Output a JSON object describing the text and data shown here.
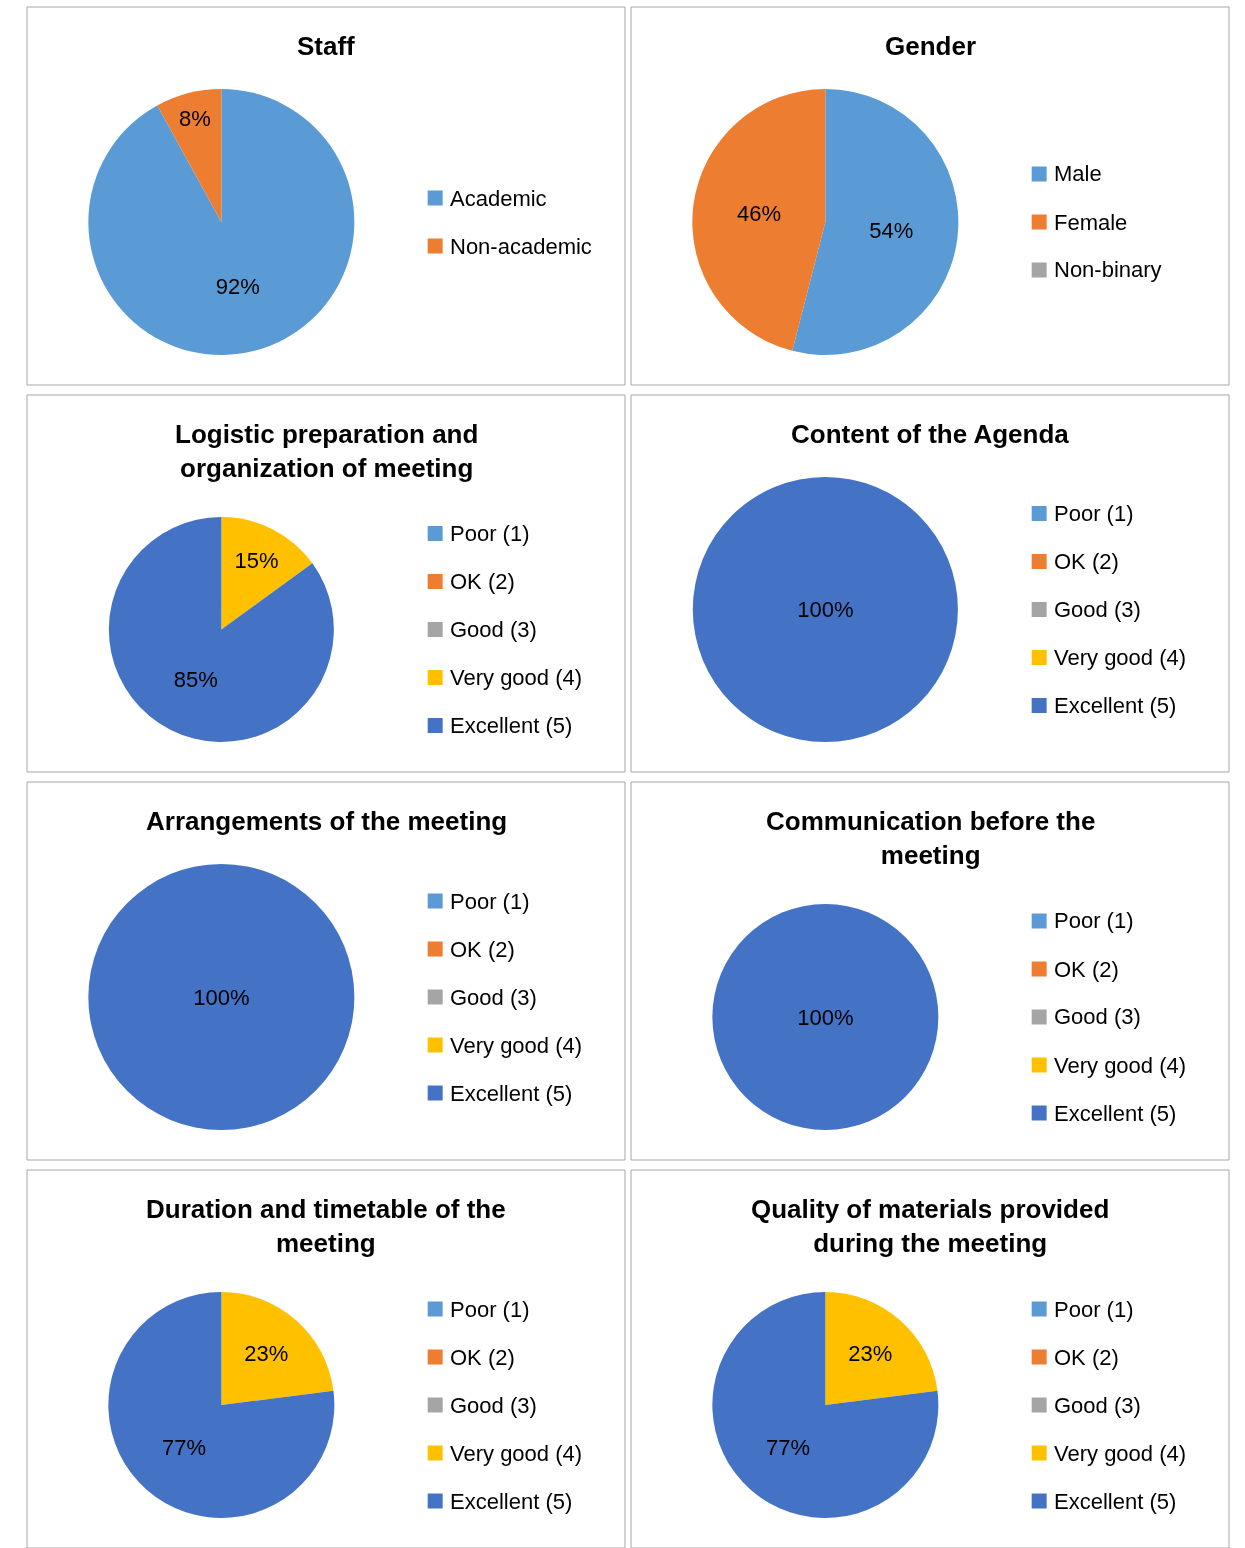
{
  "chart_data": [
    {
      "type": "pie",
      "title": "Staff",
      "categories": [
        "Academic",
        "Non-academic"
      ],
      "values": [
        92,
        8
      ],
      "colors": [
        "#5b9bd5",
        "#ed7d31"
      ],
      "value_labels": [
        "92%",
        "8%"
      ],
      "legend": "right"
    },
    {
      "type": "pie",
      "title": "Gender",
      "categories": [
        "Male",
        "Female",
        "Non-binary"
      ],
      "values": [
        54,
        46,
        0
      ],
      "colors": [
        "#5b9bd5",
        "#ed7d31",
        "#a5a5a5"
      ],
      "value_labels": [
        "54%",
        "46%",
        null
      ],
      "legend": "right"
    },
    {
      "type": "pie",
      "title": "Logistic preparation and organization of meeting",
      "categories": [
        "Poor (1)",
        "OK (2)",
        "Good (3)",
        "Very good (4)",
        "Excellent (5)"
      ],
      "values": [
        0,
        0,
        0,
        15,
        85
      ],
      "colors": [
        "#5b9bd5",
        "#ed7d31",
        "#a5a5a5",
        "#ffc000",
        "#4472c4"
      ],
      "value_labels": [
        null,
        null,
        null,
        "15%",
        "85%"
      ],
      "legend": "right"
    },
    {
      "type": "pie",
      "title": "Content of the Agenda",
      "categories": [
        "Poor (1)",
        "OK (2)",
        "Good (3)",
        "Very good (4)",
        "Excellent (5)"
      ],
      "values": [
        0,
        0,
        0,
        0,
        100
      ],
      "colors": [
        "#5b9bd5",
        "#ed7d31",
        "#a5a5a5",
        "#ffc000",
        "#4472c4"
      ],
      "value_labels": [
        null,
        null,
        null,
        null,
        "100%"
      ],
      "legend": "right"
    },
    {
      "type": "pie",
      "title": "Arrangements of the meeting",
      "categories": [
        "Poor (1)",
        "OK (2)",
        "Good (3)",
        "Very good (4)",
        "Excellent (5)"
      ],
      "values": [
        0,
        0,
        0,
        0,
        100
      ],
      "colors": [
        "#5b9bd5",
        "#ed7d31",
        "#a5a5a5",
        "#ffc000",
        "#4472c4"
      ],
      "value_labels": [
        null,
        null,
        null,
        null,
        "100%"
      ],
      "legend": "right"
    },
    {
      "type": "pie",
      "title": "Communication before the meeting",
      "categories": [
        "Poor (1)",
        "OK (2)",
        "Good (3)",
        "Very good (4)",
        "Excellent (5)"
      ],
      "values": [
        0,
        0,
        0,
        0,
        100
      ],
      "colors": [
        "#5b9bd5",
        "#ed7d31",
        "#a5a5a5",
        "#ffc000",
        "#4472c4"
      ],
      "value_labels": [
        null,
        null,
        null,
        null,
        "100%"
      ],
      "legend": "right"
    },
    {
      "type": "pie",
      "title": "Duration and timetable of the meeting",
      "categories": [
        "Poor (1)",
        "OK (2)",
        "Good (3)",
        "Very good (4)",
        "Excellent (5)"
      ],
      "values": [
        0,
        0,
        0,
        23,
        77
      ],
      "colors": [
        "#5b9bd5",
        "#ed7d31",
        "#a5a5a5",
        "#ffc000",
        "#4472c4"
      ],
      "value_labels": [
        null,
        null,
        null,
        "23%",
        "77%"
      ],
      "legend": "right"
    },
    {
      "type": "pie",
      "title": "Quality of materials provided during the meeting",
      "categories": [
        "Poor (1)",
        "OK (2)",
        "Good (3)",
        "Very good (4)",
        "Excellent (5)"
      ],
      "values": [
        0,
        0,
        0,
        23,
        77
      ],
      "colors": [
        "#5b9bd5",
        "#ed7d31",
        "#a5a5a5",
        "#ffc000",
        "#4472c4"
      ],
      "value_labels": [
        null,
        null,
        null,
        "23%",
        "77%"
      ],
      "legend": "right"
    }
  ]
}
